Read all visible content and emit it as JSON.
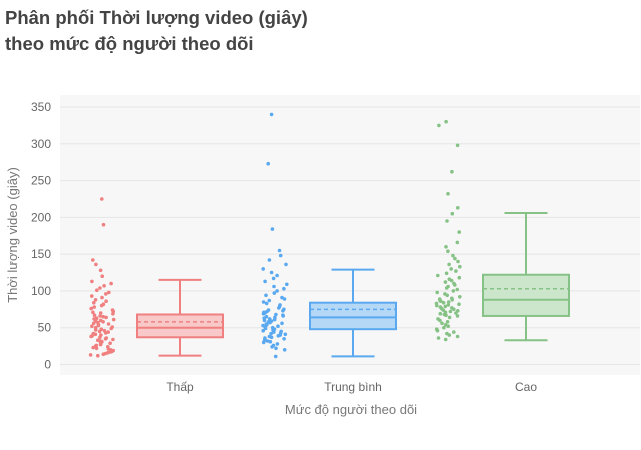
{
  "title_lines": [
    "Phân phối Thời lượng video (giây)",
    "theo mức độ người theo dõi"
  ],
  "chart_data": {
    "type": "box",
    "title": "Phân phối Thời lượng video (giây) theo mức độ người theo dõi",
    "xlabel": "Mức độ người theo dõi",
    "ylabel": "Thời lượng video (giây)",
    "ylim": [
      -10,
      360
    ],
    "yticks": [
      0,
      50,
      100,
      150,
      200,
      250,
      300,
      350
    ],
    "categories": [
      "Thấp",
      "Trung bình",
      "Cao"
    ],
    "grid": true,
    "boxpoints": "all",
    "boxmean": true,
    "series": [
      {
        "category": "Thấp",
        "color": "#f08080",
        "fill": "#f9c9c9",
        "lowerfence": 12,
        "q1": 37,
        "median": 50,
        "q3": 68,
        "upperfence": 115,
        "mean": 58,
        "points": [
          225,
          190,
          142,
          136,
          128,
          120,
          113,
          110,
          107,
          104,
          101,
          98,
          96,
          93,
          91,
          88,
          86,
          84,
          82,
          80,
          78,
          76,
          74,
          72,
          71,
          70,
          69,
          67,
          66,
          65,
          64,
          63,
          62,
          61,
          60,
          59,
          58,
          57,
          56,
          55,
          54,
          53,
          52,
          51,
          50,
          49,
          48,
          47,
          46,
          45,
          44,
          43,
          42,
          41,
          40,
          39,
          38,
          37,
          36,
          35,
          34,
          33,
          32,
          31,
          30,
          29,
          28,
          27,
          26,
          25,
          24,
          23,
          22,
          21,
          20,
          19,
          18,
          17,
          16,
          15,
          14,
          13,
          12
        ]
      },
      {
        "category": "Trung bình",
        "color": "#5aa9f0",
        "fill": "#b6d8f7",
        "lowerfence": 11,
        "q1": 48,
        "median": 64,
        "q3": 84,
        "upperfence": 129,
        "mean": 75,
        "points": [
          340,
          273,
          184,
          155,
          148,
          142,
          136,
          130,
          125,
          121,
          117,
          113,
          109,
          106,
          103,
          100,
          97,
          94,
          91,
          89,
          87,
          85,
          83,
          81,
          79,
          77,
          75,
          74,
          73,
          72,
          71,
          70,
          69,
          68,
          67,
          66,
          65,
          64,
          63,
          62,
          61,
          60,
          59,
          58,
          57,
          56,
          55,
          54,
          53,
          52,
          51,
          50,
          49,
          48,
          47,
          46,
          45,
          44,
          43,
          42,
          41,
          40,
          39,
          38,
          37,
          36,
          35,
          34,
          33,
          32,
          31,
          30,
          28,
          26,
          24,
          22,
          20,
          11
        ]
      },
      {
        "category": "Cao",
        "color": "#86c286",
        "fill": "#cce6cc",
        "lowerfence": 33,
        "q1": 66,
        "median": 88,
        "q3": 122,
        "upperfence": 206,
        "mean": 103,
        "points": [
          330,
          325,
          298,
          262,
          232,
          213,
          205,
          195,
          180,
          166,
          160,
          154,
          148,
          144,
          140,
          136,
          133,
          130,
          127,
          124,
          121,
          118,
          116,
          114,
          112,
          110,
          108,
          106,
          104,
          102,
          100,
          98,
          96,
          94,
          92,
          90,
          89,
          88,
          87,
          86,
          85,
          84,
          83,
          82,
          81,
          80,
          79,
          78,
          77,
          76,
          75,
          74,
          73,
          72,
          71,
          70,
          69,
          68,
          67,
          66,
          64,
          62,
          60,
          58,
          56,
          54,
          52,
          50,
          48,
          46,
          44,
          42,
          40,
          38,
          36,
          34
        ]
      }
    ]
  }
}
